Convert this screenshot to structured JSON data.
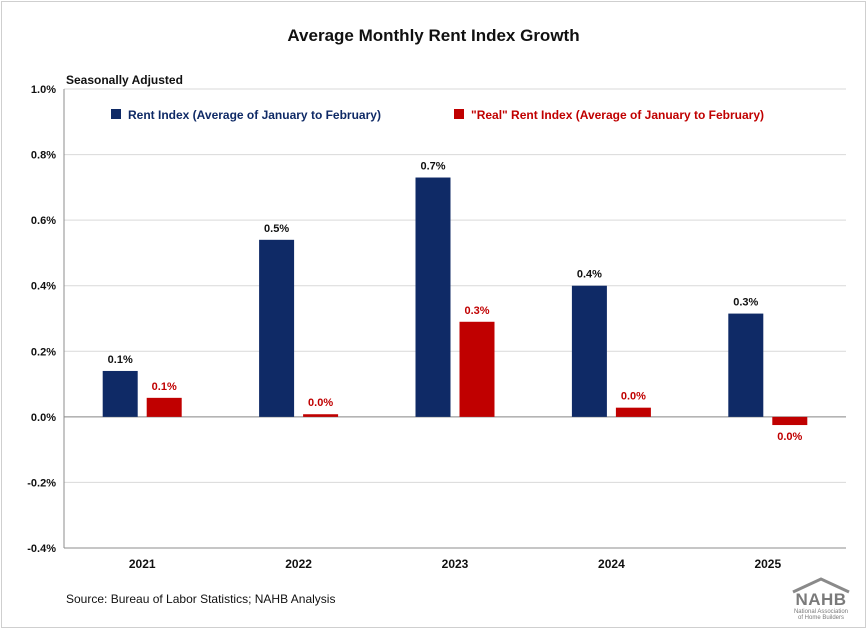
{
  "chart_data": {
    "type": "bar",
    "title": "Average Monthly Rent Index Growth",
    "subtitle": "Seasonally Adjusted",
    "categories": [
      "2021",
      "2022",
      "2023",
      "2024",
      "2025"
    ],
    "ylim": [
      -0.4,
      1.0
    ],
    "yticks": [
      -0.4,
      -0.2,
      0.0,
      0.2,
      0.4,
      0.6,
      0.8,
      1.0
    ],
    "ytick_labels": [
      "-0.4%",
      "-0.2%",
      "0.0%",
      "0.2%",
      "0.4%",
      "0.6%",
      "0.8%",
      "1.0%"
    ],
    "grid": true,
    "legend_position": "top",
    "series": [
      {
        "name": "Rent Index (Average of January to February)",
        "color": "#0f2a66",
        "values": [
          0.14,
          0.54,
          0.73,
          0.4,
          0.315
        ],
        "labels": [
          "0.1%",
          "0.5%",
          "0.7%",
          "0.4%",
          "0.3%"
        ]
      },
      {
        "name": "\"Real\" Rent Index (Average of January to February)",
        "color": "#c00000",
        "values": [
          0.058,
          0.008,
          0.29,
          0.028,
          -0.025
        ],
        "labels": [
          "0.1%",
          "0.0%",
          "0.3%",
          "0.0%",
          "0.0%"
        ]
      }
    ],
    "source": "Source: Bureau of Labor Statistics; NAHB Analysis"
  },
  "logo": {
    "text": "NAHB",
    "subtext_line1": "National Association",
    "subtext_line2": "of Home Builders",
    "color": "#7a7a7a"
  }
}
